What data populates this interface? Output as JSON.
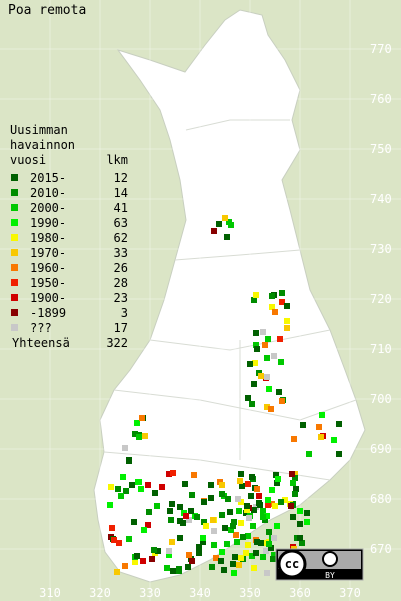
{
  "title": "Poa remota",
  "legend": {
    "header": [
      "Uusimman",
      "havainnon",
      "vuosi"
    ],
    "count_header": "lkm",
    "rows": [
      {
        "label": "2015-",
        "count": 12,
        "color": "#006000"
      },
      {
        "label": "2010-",
        "count": 14,
        "color": "#008c00"
      },
      {
        "label": "2000-",
        "count": 41,
        "color": "#00c800"
      },
      {
        "label": "1990-",
        "count": 63,
        "color": "#00f000"
      },
      {
        "label": "1980-",
        "count": 62,
        "color": "#f8f800"
      },
      {
        "label": "1970-",
        "count": 33,
        "color": "#f8c800"
      },
      {
        "label": "1960-",
        "count": 26,
        "color": "#f87800"
      },
      {
        "label": "1950-",
        "count": 28,
        "color": "#f02000"
      },
      {
        "label": "1900-",
        "count": 23,
        "color": "#d00000"
      },
      {
        "label": "-1899",
        "count": 3,
        "color": "#880000"
      },
      {
        "label": "???",
        "count": 17,
        "color": "#c8c8c8"
      }
    ],
    "total_label": "Yhteensä",
    "total": 322
  },
  "map": {
    "xticks": [
      310,
      320,
      330,
      340,
      350,
      360,
      370
    ],
    "yticks": [
      670,
      680,
      690,
      700,
      710,
      720,
      730,
      740,
      750,
      760,
      770
    ]
  },
  "license": {
    "cc": "cc",
    "by": "BY"
  }
}
